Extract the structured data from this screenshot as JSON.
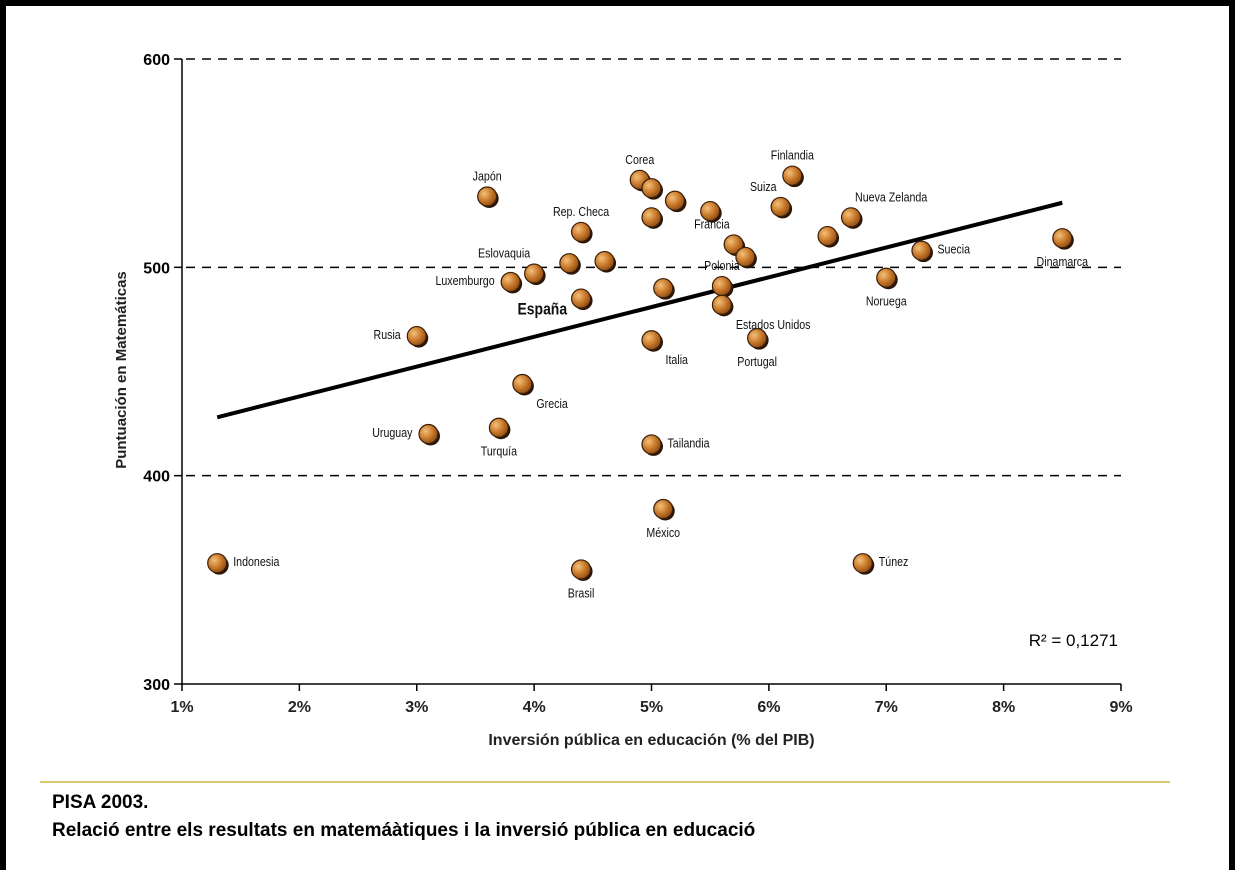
{
  "caption": {
    "title": "PISA 2003.",
    "subtitle": "Relació entre els resultats en matemáàtiques i la inversió pública en educació"
  },
  "colors": {
    "point_fill": "#c9792a",
    "point_stroke": "#3a1e08",
    "separator": "#d9c76e",
    "grid": "#000000"
  },
  "chart_data": {
    "type": "scatter",
    "xlabel": "Inversión pública en educación (% del PIB)",
    "ylabel": "Puntuación en Matemáticas",
    "xlim": [
      1,
      9
    ],
    "ylim": [
      300,
      600
    ],
    "x_ticks": [
      {
        "value": 1,
        "label": "1%"
      },
      {
        "value": 2,
        "label": "2%"
      },
      {
        "value": 3,
        "label": "3%"
      },
      {
        "value": 4,
        "label": "4%"
      },
      {
        "value": 5,
        "label": "5%"
      },
      {
        "value": 6,
        "label": "6%"
      },
      {
        "value": 7,
        "label": "7%"
      },
      {
        "value": 8,
        "label": "8%"
      },
      {
        "value": 9,
        "label": "9%"
      }
    ],
    "y_ticks": [
      {
        "value": 300,
        "label": "300"
      },
      {
        "value": 400,
        "label": "400"
      },
      {
        "value": 500,
        "label": "500"
      },
      {
        "value": 600,
        "label": "600"
      }
    ],
    "grid": "horizontal dashed at 400, 500, 600",
    "trendline": {
      "x": [
        1.3,
        8.5
      ],
      "y": [
        428,
        531
      ]
    },
    "annotation": "R² = 0,1271",
    "points": [
      {
        "x": 1.3,
        "y": 358,
        "label": "Indonesia",
        "lpos": "right"
      },
      {
        "x": 3.0,
        "y": 467,
        "label": "Rusia",
        "lpos": "left"
      },
      {
        "x": 3.1,
        "y": 420,
        "label": "Uruguay",
        "lpos": "left"
      },
      {
        "x": 3.6,
        "y": 534,
        "label": "Japón",
        "lpos": "above"
      },
      {
        "x": 3.7,
        "y": 423,
        "label": "Turquía",
        "lpos": "below"
      },
      {
        "x": 3.8,
        "y": 493,
        "label": "Luxemburgo",
        "lpos": "left"
      },
      {
        "x": 3.9,
        "y": 444,
        "label": "Grecia",
        "lpos": "belowright"
      },
      {
        "x": 4.0,
        "y": 497,
        "label": "Eslovaquia",
        "lpos": "aboveleft"
      },
      {
        "x": 4.3,
        "y": 502,
        "label": "",
        "lpos": "none"
      },
      {
        "x": 4.4,
        "y": 517,
        "label": "Rep. Checa",
        "lpos": "above"
      },
      {
        "x": 4.4,
        "y": 485,
        "label": "España",
        "lpos": "bigleft"
      },
      {
        "x": 4.4,
        "y": 355,
        "label": "Brasil",
        "lpos": "below"
      },
      {
        "x": 4.6,
        "y": 503,
        "label": "",
        "lpos": "none"
      },
      {
        "x": 4.9,
        "y": 542,
        "label": "Corea",
        "lpos": "above"
      },
      {
        "x": 5.0,
        "y": 538,
        "label": "",
        "lpos": "none"
      },
      {
        "x": 5.0,
        "y": 524,
        "label": "",
        "lpos": "none"
      },
      {
        "x": 5.0,
        "y": 465,
        "label": "Italia",
        "lpos": "belowright"
      },
      {
        "x": 5.0,
        "y": 415,
        "label": "Tailandia",
        "lpos": "right"
      },
      {
        "x": 5.1,
        "y": 490,
        "label": "",
        "lpos": "none"
      },
      {
        "x": 5.1,
        "y": 384,
        "label": "México",
        "lpos": "below"
      },
      {
        "x": 5.2,
        "y": 532,
        "label": "",
        "lpos": "none"
      },
      {
        "x": 5.5,
        "y": 527,
        "label": "",
        "lpos": "none"
      },
      {
        "x": 5.6,
        "y": 491,
        "label": "Polonia",
        "lpos": "above"
      },
      {
        "x": 5.6,
        "y": 482,
        "label": "Estados Unidos",
        "lpos": "belowright"
      },
      {
        "x": 5.7,
        "y": 511,
        "label": "Francia",
        "lpos": "aboveleft"
      },
      {
        "x": 5.8,
        "y": 505,
        "label": "",
        "lpos": "none"
      },
      {
        "x": 5.9,
        "y": 466,
        "label": "Portugal",
        "lpos": "below"
      },
      {
        "x": 6.1,
        "y": 529,
        "label": "Suiza",
        "lpos": "aboveleft"
      },
      {
        "x": 6.2,
        "y": 544,
        "label": "Finlandia",
        "lpos": "above"
      },
      {
        "x": 6.5,
        "y": 515,
        "label": "",
        "lpos": "none"
      },
      {
        "x": 6.7,
        "y": 524,
        "label": "Nueva Zelanda",
        "lpos": "aboveright"
      },
      {
        "x": 6.8,
        "y": 358,
        "label": "Túnez",
        "lpos": "right"
      },
      {
        "x": 7.0,
        "y": 495,
        "label": "Noruega",
        "lpos": "below"
      },
      {
        "x": 7.3,
        "y": 508,
        "label": "Suecia",
        "lpos": "right"
      },
      {
        "x": 8.5,
        "y": 514,
        "label": "Dinamarca",
        "lpos": "below"
      }
    ]
  }
}
